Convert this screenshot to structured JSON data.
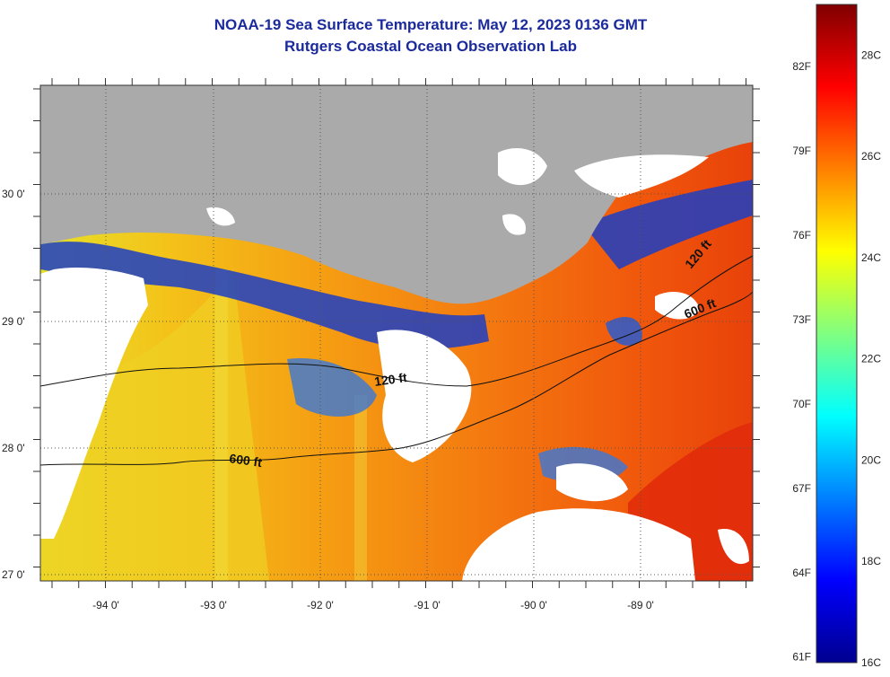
{
  "title": "NOAA-19 Sea Surface Temperature:  May 12, 2023 0136 GMT",
  "subtitle": "Rutgers Coastal Ocean Observation Lab",
  "colors": {
    "land": "#aaaaaa",
    "cloud": "#ffffff",
    "title": "#1b2a9c"
  },
  "axes": {
    "lat_labels": [
      "30 0'",
      "29 0'",
      "28 0'",
      "27 0'"
    ],
    "lon_labels": [
      "-94 0'",
      "-93 0'",
      "-92 0'",
      "-91 0'",
      "-90 0'",
      "-89 0'"
    ]
  },
  "contours": {
    "labels": [
      "120 ft",
      "600 ft",
      "120 ft",
      "600 ft"
    ]
  },
  "colorbar": {
    "fahrenheit_labels": [
      "82F",
      "79F",
      "76F",
      "73F",
      "70F",
      "67F",
      "64F",
      "61F"
    ],
    "celsius_labels": [
      "28C",
      "26C",
      "24C",
      "22C",
      "20C",
      "18C",
      "16C"
    ],
    "scale_c": [
      16,
      29
    ],
    "colormap": "jet"
  }
}
